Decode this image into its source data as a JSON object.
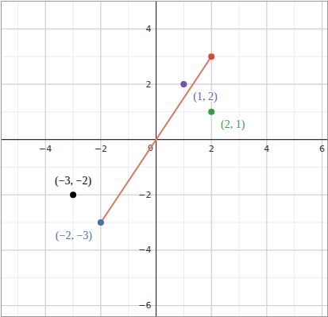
{
  "chart_data": {
    "type": "scatter",
    "xlim": [
      -5.6,
      6.2
    ],
    "ylim": [
      -6.4,
      5.0
    ],
    "xticks": [
      -4,
      -2,
      0,
      2,
      4,
      6
    ],
    "yticks": [
      -6,
      -4,
      -2,
      2,
      4
    ],
    "grid": true,
    "segments": [
      {
        "x": [
          -2,
          2
        ],
        "y": [
          -3,
          3
        ],
        "color": "#e0796a"
      }
    ],
    "points": [
      {
        "x": -3,
        "y": -2,
        "label": "(−3, −2)",
        "color": "#000000"
      },
      {
        "x": -2,
        "y": -3,
        "label": "(−2, −3)",
        "color": "#4a6fb0"
      },
      {
        "x": 1,
        "y": 2,
        "label": "(1, 2)",
        "color": "#6a55b0"
      },
      {
        "x": 2,
        "y": 1,
        "label": "(2, 1)",
        "color": "#3f9a48"
      },
      {
        "x": 2,
        "y": 3,
        "color": "#d9493a"
      }
    ]
  }
}
